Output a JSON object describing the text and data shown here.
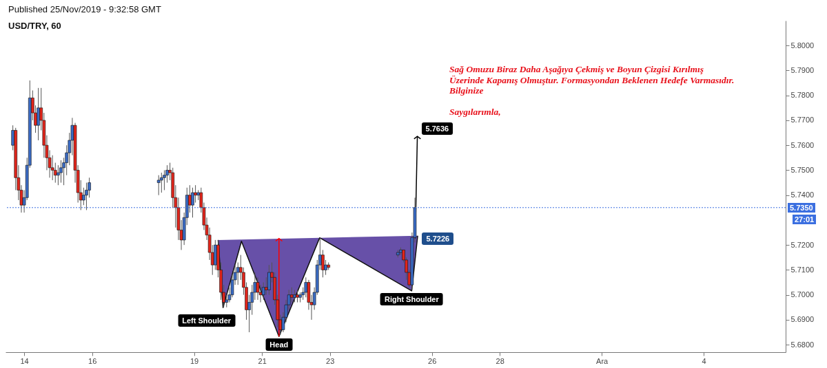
{
  "chart_data": {
    "type": "candlestick",
    "title": "USD/TRY, 60",
    "annotations": [
      "Published 25/Nov/2019 - 9:32:58 GMT",
      "Sağ Omuzu Biraz Daha Aşağıya Çekmiş ve Boyun Çizgisi Kırılmış\nÜzerinde Kapanış Olmuştur. Formasyondan Beklenen Hedefe Varmasıdır.\nBilginize",
      "Saygılarımla,",
      "27:01",
      {
        "text": "Left Shoulder",
        "x": "2019-11-19T20:30",
        "y": 5.6949
      },
      {
        "text": "Head",
        "x": "2019-11-21T12:00",
        "y": 5.6833
      },
      {
        "text": "Right Shoulder",
        "x": "2019-11-25T09:45",
        "y": 5.7016
      },
      {
        "text": "5.7636",
        "x": "2019-11-25T13:45",
        "y": 5.7636
      },
      {
        "text": "5.7226",
        "x": "2019-11-25T12:15",
        "y": 5.7226
      }
    ],
    "x": [
      "2019-11-13T16:00",
      "2019-11-13T18:00",
      "2019-11-13T20:00",
      "2019-11-13T22:00",
      "2019-11-14T00:00",
      "2019-11-14T02:00",
      "2019-11-14T04:00",
      "2019-11-14T06:00",
      "2019-11-14T08:00",
      "2019-11-14T10:00",
      "2019-11-14T12:00",
      "2019-11-14T14:00",
      "2019-11-14T16:00",
      "2019-11-14T18:00",
      "2019-11-14T20:00",
      "2019-11-14T22:00",
      "2019-11-15T00:00",
      "2019-11-15T02:00",
      "2019-11-15T04:00",
      "2019-11-15T06:00",
      "2019-11-15T08:00",
      "2019-11-15T10:00",
      "2019-11-15T12:00",
      "2019-11-15T14:00",
      "2019-11-15T16:00",
      "2019-11-15T18:00",
      "2019-11-15T20:00",
      "2019-11-15T22:00",
      "2019-11-17T23:00",
      "2019-11-18T01:00",
      "2019-11-18T03:00",
      "2019-11-18T05:00",
      "2019-11-18T07:00",
      "2019-11-18T09:00",
      "2019-11-18T11:00",
      "2019-11-18T13:00",
      "2019-11-18T15:00",
      "2019-11-18T17:00",
      "2019-11-18T19:00",
      "2019-11-18T21:00",
      "2019-11-18T23:00",
      "2019-11-19T01:00",
      "2019-11-19T03:00",
      "2019-11-19T05:00",
      "2019-11-19T07:00",
      "2019-11-19T09:00",
      "2019-11-19T11:00",
      "2019-11-19T13:00",
      "2019-11-19T15:00",
      "2019-11-19T17:00",
      "2019-11-19T19:00",
      "2019-11-19T21:00",
      "2019-11-19T23:00",
      "2019-11-20T01:00",
      "2019-11-20T03:00",
      "2019-11-20T05:00",
      "2019-11-20T07:00",
      "2019-11-20T09:00",
      "2019-11-20T11:00",
      "2019-11-20T13:00",
      "2019-11-20T15:00",
      "2019-11-20T17:00",
      "2019-11-20T19:00",
      "2019-11-20T21:00",
      "2019-11-20T23:00",
      "2019-11-21T01:00",
      "2019-11-21T03:00",
      "2019-11-21T05:00",
      "2019-11-21T07:00",
      "2019-11-21T09:00",
      "2019-11-21T11:00",
      "2019-11-21T13:00",
      "2019-11-21T15:00",
      "2019-11-21T17:00",
      "2019-11-21T19:00",
      "2019-11-21T21:00",
      "2019-11-21T23:00",
      "2019-11-22T01:00",
      "2019-11-22T03:00",
      "2019-11-22T05:00",
      "2019-11-22T07:00",
      "2019-11-22T09:00",
      "2019-11-22T11:00",
      "2019-11-22T13:00",
      "2019-11-22T15:00",
      "2019-11-22T17:00",
      "2019-11-22T19:00",
      "2019-11-22T21:00",
      "2019-11-22T23:00",
      "2019-11-25T00:00",
      "2019-11-25T02:00",
      "2019-11-25T04:00",
      "2019-11-25T06:00",
      "2019-11-25T08:00",
      "2019-11-25T10:00",
      "2019-11-25T12:00"
    ],
    "ohlc": [
      [
        5.76,
        5.768,
        5.758,
        5.766
      ],
      [
        5.766,
        5.767,
        5.742,
        5.747
      ],
      [
        5.747,
        5.752,
        5.738,
        5.742
      ],
      [
        5.742,
        5.744,
        5.733,
        5.736
      ],
      [
        5.736,
        5.742,
        5.733,
        5.739
      ],
      [
        5.739,
        5.755,
        5.738,
        5.752
      ],
      [
        5.752,
        5.786,
        5.751,
        5.779
      ],
      [
        5.779,
        5.782,
        5.77,
        5.773
      ],
      [
        5.773,
        5.776,
        5.765,
        5.768
      ],
      [
        5.768,
        5.783,
        5.762,
        5.775
      ],
      [
        5.775,
        5.783,
        5.766,
        5.77
      ],
      [
        5.77,
        5.773,
        5.755,
        5.76
      ],
      [
        5.76,
        5.764,
        5.75,
        5.755
      ],
      [
        5.755,
        5.758,
        5.747,
        5.751
      ],
      [
        5.751,
        5.756,
        5.746,
        5.75
      ],
      [
        5.75,
        5.753,
        5.745,
        5.748
      ],
      [
        5.748,
        5.752,
        5.744,
        5.749
      ],
      [
        5.749,
        5.754,
        5.745,
        5.751
      ],
      [
        5.751,
        5.755,
        5.744,
        5.753
      ],
      [
        5.753,
        5.76,
        5.748,
        5.757
      ],
      [
        5.757,
        5.765,
        5.752,
        5.762
      ],
      [
        5.762,
        5.771,
        5.756,
        5.768
      ],
      [
        5.768,
        5.769,
        5.745,
        5.75
      ],
      [
        5.75,
        5.752,
        5.737,
        5.741
      ],
      [
        5.741,
        5.746,
        5.734,
        5.738
      ],
      [
        5.738,
        5.743,
        5.736,
        5.74
      ],
      [
        5.74,
        5.745,
        5.734,
        5.742
      ],
      [
        5.742,
        5.747,
        5.739,
        5.745
      ],
      [
        5.745,
        5.748,
        5.74,
        5.746
      ],
      [
        5.746,
        5.749,
        5.741,
        5.747
      ],
      [
        5.747,
        5.75,
        5.742,
        5.748
      ],
      [
        5.748,
        5.752,
        5.745,
        5.75
      ],
      [
        5.75,
        5.753,
        5.746,
        5.749
      ],
      [
        5.749,
        5.751,
        5.735,
        5.739
      ],
      [
        5.739,
        5.744,
        5.727,
        5.735
      ],
      [
        5.735,
        5.739,
        5.722,
        5.726
      ],
      [
        5.726,
        5.73,
        5.718,
        5.722
      ],
      [
        5.722,
        5.733,
        5.72,
        5.731
      ],
      [
        5.731,
        5.743,
        5.728,
        5.74
      ],
      [
        5.74,
        5.744,
        5.733,
        5.736
      ],
      [
        5.736,
        5.743,
        5.731,
        5.741
      ],
      [
        5.741,
        5.744,
        5.737,
        5.74
      ],
      [
        5.74,
        5.742,
        5.738,
        5.741
      ],
      [
        5.741,
        5.743,
        5.733,
        5.735
      ],
      [
        5.735,
        5.737,
        5.726,
        5.728
      ],
      [
        5.728,
        5.731,
        5.722,
        5.724
      ],
      [
        5.724,
        5.727,
        5.714,
        5.717
      ],
      [
        5.717,
        5.72,
        5.708,
        5.712
      ],
      [
        5.712,
        5.722,
        5.71,
        5.72
      ],
      [
        5.72,
        5.722,
        5.707,
        5.71
      ],
      [
        5.71,
        5.713,
        5.698,
        5.701
      ],
      [
        5.701,
        5.704,
        5.695,
        5.697
      ],
      [
        5.697,
        5.7,
        5.695,
        5.698
      ],
      [
        5.698,
        5.703,
        5.697,
        5.7
      ],
      [
        5.7,
        5.708,
        5.699,
        5.706
      ],
      [
        5.706,
        5.712,
        5.704,
        5.709
      ],
      [
        5.709,
        5.713,
        5.704,
        5.711
      ],
      [
        5.711,
        5.716,
        5.706,
        5.709
      ],
      [
        5.709,
        5.711,
        5.7,
        5.703
      ],
      [
        5.703,
        5.705,
        5.69,
        5.694
      ],
      [
        5.694,
        5.7,
        5.685,
        5.697
      ],
      [
        5.697,
        5.704,
        5.692,
        5.701
      ],
      [
        5.701,
        5.709,
        5.698,
        5.705
      ],
      [
        5.705,
        5.707,
        5.698,
        5.701
      ],
      [
        5.701,
        5.704,
        5.697,
        5.7
      ],
      [
        5.7,
        5.705,
        5.698,
        5.703
      ],
      [
        5.703,
        5.707,
        5.7,
        5.702
      ],
      [
        5.702,
        5.712,
        5.7,
        5.709
      ],
      [
        5.709,
        5.713,
        5.705,
        5.707
      ],
      [
        5.707,
        5.709,
        5.696,
        5.698
      ],
      [
        5.698,
        5.7,
        5.687,
        5.69
      ],
      [
        5.69,
        5.692,
        5.684,
        5.686
      ],
      [
        5.686,
        5.693,
        5.685,
        5.691
      ],
      [
        5.691,
        5.698,
        5.689,
        5.696
      ],
      [
        5.696,
        5.702,
        5.694,
        5.7
      ],
      [
        5.7,
        5.703,
        5.697,
        5.699
      ],
      [
        5.699,
        5.702,
        5.697,
        5.7
      ],
      [
        5.7,
        5.702,
        5.697,
        5.699
      ],
      [
        5.699,
        5.701,
        5.697,
        5.7
      ],
      [
        5.7,
        5.703,
        5.698,
        5.701
      ],
      [
        5.701,
        5.707,
        5.699,
        5.705
      ],
      [
        5.705,
        5.706,
        5.694,
        5.697
      ],
      [
        5.697,
        5.7,
        5.69,
        5.696
      ],
      [
        5.696,
        5.703,
        5.694,
        5.701
      ],
      [
        5.701,
        5.714,
        5.7,
        5.712
      ],
      [
        5.712,
        5.723,
        5.71,
        5.716
      ],
      [
        5.716,
        5.718,
        5.707,
        5.71
      ],
      [
        5.71,
        5.714,
        5.708,
        5.712
      ],
      [
        5.712,
        5.713,
        5.71,
        5.711
      ],
      [
        5.716,
        5.718,
        5.715,
        5.717
      ],
      [
        5.717,
        5.719,
        5.716,
        5.718
      ],
      [
        5.718,
        5.718,
        5.713,
        5.714
      ],
      [
        5.714,
        5.715,
        5.706,
        5.709
      ],
      [
        5.709,
        5.71,
        5.703,
        5.704
      ],
      [
        5.704,
        5.725,
        5.702,
        5.723
      ],
      [
        5.723,
        5.739,
        5.721,
        5.735
      ]
    ],
    "colors": [
      "#3a6bc4",
      "#e1251b",
      "#e1251b",
      "#e1251b",
      "#3a6bc4",
      "#3a6bc4",
      "#3a6bc4",
      "#e1251b",
      "#e1251b",
      "#3a6bc4",
      "#e1251b",
      "#e1251b",
      "#e1251b",
      "#e1251b",
      "#e1251b",
      "#e1251b",
      "#3a6bc4",
      "#3a6bc4",
      "#3a6bc4",
      "#3a6bc4",
      "#3a6bc4",
      "#3a6bc4",
      "#e1251b",
      "#e1251b",
      "#e1251b",
      "#3a6bc4",
      "#3a6bc4",
      "#3a6bc4",
      "#3a6bc4",
      "#3a6bc4",
      "#3a6bc4",
      "#3a6bc4",
      "#e1251b",
      "#e1251b",
      "#e1251b",
      "#e1251b",
      "#e1251b",
      "#3a6bc4",
      "#3a6bc4",
      "#e1251b",
      "#3a6bc4",
      "#e1251b",
      "#3a6bc4",
      "#e1251b",
      "#e1251b",
      "#e1251b",
      "#e1251b",
      "#e1251b",
      "#3a6bc4",
      "#e1251b",
      "#e1251b",
      "#e1251b",
      "#3a6bc4",
      "#3a6bc4",
      "#3a6bc4",
      "#3a6bc4",
      "#3a6bc4",
      "#e1251b",
      "#e1251b",
      "#e1251b",
      "#3a6bc4",
      "#3a6bc4",
      "#3a6bc4",
      "#e1251b",
      "#e1251b",
      "#3a6bc4",
      "#e1251b",
      "#3a6bc4",
      "#e1251b",
      "#e1251b",
      "#e1251b",
      "#e1251b",
      "#3a6bc4",
      "#3a6bc4",
      "#3a6bc4",
      "#e1251b",
      "#3a6bc4",
      "#e1251b",
      "#3a6bc4",
      "#3a6bc4",
      "#3a6bc4",
      "#e1251b",
      "#e1251b",
      "#3a6bc4",
      "#3a6bc4",
      "#3a6bc4",
      "#e1251b",
      "#3a6bc4",
      "#e1251b",
      "#3a6bc4",
      "#3a6bc4",
      "#e1251b",
      "#e1251b",
      "#e1251b",
      "#3a6bc4",
      "#3a6bc4"
    ],
    "series": [
      {
        "type": "line",
        "color": "#6750a8",
        "x": [
          "2019-11-19T17:00",
          "2019-11-19T20:30",
          "2019-11-20T09:30",
          "2019-11-21T12:00",
          "2019-11-22T16:45",
          "2019-11-25T09:45",
          "2019-11-25T14:00"
        ],
        "values": [
          5.722,
          5.6949,
          5.7215,
          5.6833,
          5.7229,
          5.7016,
          5.7237
        ]
      },
      {
        "type": "line",
        "color": "#ff0000",
        "x": [
          "2019-11-21T12:00",
          "2019-11-21T12:00"
        ],
        "values": [
          5.6833,
          5.7226
        ]
      },
      {
        "type": "line",
        "color": "#000000",
        "x": [
          "2019-11-25T12:15",
          "2019-11-25T13:45"
        ],
        "values": [
          5.7226,
          5.7636
        ]
      }
    ],
    "ref_lines": [
      {
        "axis": "y",
        "value": 5.735,
        "label": "5.7350",
        "color": "#3b6fe0",
        "line_style": "dotted"
      }
    ],
    "xlim": [
      "2019-11-13T13:15",
      "2019-12-06T07:30"
    ],
    "xticks": [
      {
        "value": "2019-11-14",
        "label": "14"
      },
      {
        "value": "2019-11-16",
        "label": "16"
      },
      {
        "value": "2019-11-19",
        "label": "19"
      },
      {
        "value": "2019-11-21",
        "label": "21"
      },
      {
        "value": "2019-11-23",
        "label": "23"
      },
      {
        "value": "2019-11-26",
        "label": "26"
      },
      {
        "value": "2019-11-28",
        "label": "28"
      },
      {
        "value": "2019-12-01",
        "label": "Ara"
      },
      {
        "value": "2019-12-04",
        "label": "4"
      }
    ],
    "ylim": [
      5.677,
      5.81
    ],
    "yticks": [
      {
        "value": 5.68,
        "label": "5.6800"
      },
      {
        "value": 5.69,
        "label": "5.6900"
      },
      {
        "value": 5.7,
        "label": "5.7000"
      },
      {
        "value": 5.71,
        "label": "5.7100"
      },
      {
        "value": 5.72,
        "label": "5.7200"
      },
      {
        "value": 5.74,
        "label": "5.7400"
      },
      {
        "value": 5.75,
        "label": "5.7500"
      },
      {
        "value": 5.76,
        "label": "5.7600"
      },
      {
        "value": 5.77,
        "label": "5.7700"
      },
      {
        "value": 5.78,
        "label": "5.7800"
      },
      {
        "value": 5.79,
        "label": "5.7900"
      },
      {
        "value": 5.8,
        "label": "5.8000"
      }
    ]
  }
}
